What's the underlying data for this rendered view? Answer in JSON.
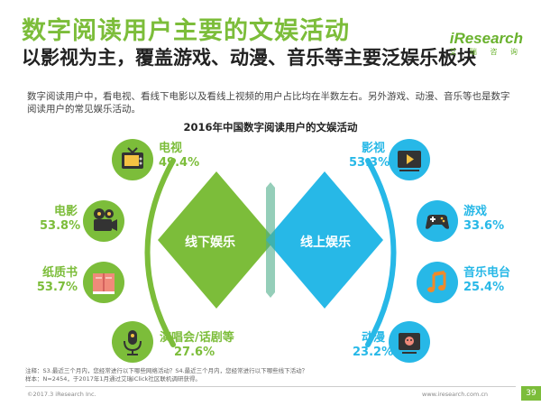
{
  "header": {
    "title": "数字阅读用户主要的文娱活动",
    "subtitle": "以影视为主，覆盖游戏、动漫、音乐等主要泛娱乐板块",
    "description": "数字阅读用户中，看电视、看线下电影以及看线上视频的用户占比均在半数左右。另外游戏、动漫、音乐等也是数字阅读用户的常见娱乐活动。"
  },
  "logo": {
    "name": "iResearch",
    "sub": "艾 瑞 咨 询"
  },
  "chart": {
    "title": "2016年中国数字阅读用户的文娱活动",
    "offline_label": "线下娱乐",
    "online_label": "线上娱乐",
    "colors": {
      "offline": "#7cbd3a",
      "online": "#27b8e7"
    }
  },
  "chart_data": {
    "type": "table",
    "title": "2016年中国数字阅读用户的文娱活动",
    "groups": [
      {
        "name": "线下娱乐",
        "items": [
          {
            "label": "电视",
            "value": "49.4%"
          },
          {
            "label": "电影",
            "value": "53.8%"
          },
          {
            "label": "纸质书",
            "value": "53.7%"
          },
          {
            "label": "演唱会/话剧等",
            "value": "27.6%"
          }
        ]
      },
      {
        "name": "线上娱乐",
        "items": [
          {
            "label": "影视",
            "value": "53.3%"
          },
          {
            "label": "游戏",
            "value": "33.6%"
          },
          {
            "label": "音乐电台",
            "value": "25.4%"
          },
          {
            "label": "动漫",
            "value": "23.2%"
          }
        ]
      }
    ]
  },
  "footer": {
    "note1": "注释：S3.最近三个月内，您经常进行以下哪些网络活动？S4.最近三个月内，您经常进行以下哪些线下活动？",
    "note2": "样本：N=2454，于2017年1月通过艾瑞iClick社区联机调研获得。",
    "copyright": "©2017.3 iResearch Inc.",
    "website": "www.iresearch.com.cn",
    "page": "39"
  }
}
